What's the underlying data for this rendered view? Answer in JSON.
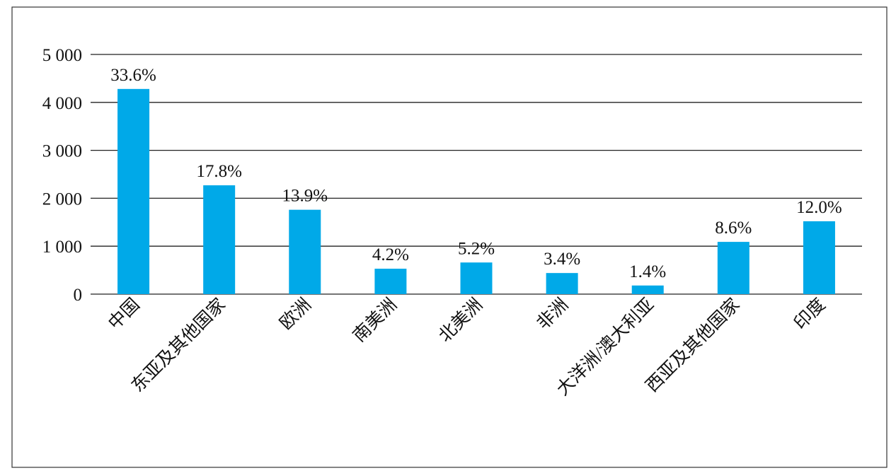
{
  "chart_data": {
    "type": "bar",
    "categories": [
      "中国",
      "东亚及其他国家",
      "欧洲",
      "南美洲",
      "北美洲",
      "非洲",
      "大洋洲/澳大利亚",
      "西亚及其他国家",
      "印度"
    ],
    "values": [
      4280,
      2270,
      1760,
      530,
      660,
      440,
      180,
      1090,
      1520
    ],
    "share_labels": [
      "33.6%",
      "17.8%",
      "13.9%",
      "4.2%",
      "5.2%",
      "3.4%",
      "1.4%",
      "8.6%",
      "12.0%"
    ],
    "color": "#00a9e8",
    "ylim": [
      0,
      5000
    ],
    "yticks": [
      0,
      {
        "value": 1000,
        "label": "1 000"
      },
      {
        "value": 2000,
        "label": "2 000"
      },
      {
        "value": 3000,
        "label": "3 000"
      },
      {
        "value": 4000,
        "label": "4 000"
      },
      {
        "value": 5000,
        "label": "5 000"
      }
    ],
    "grid": true
  }
}
